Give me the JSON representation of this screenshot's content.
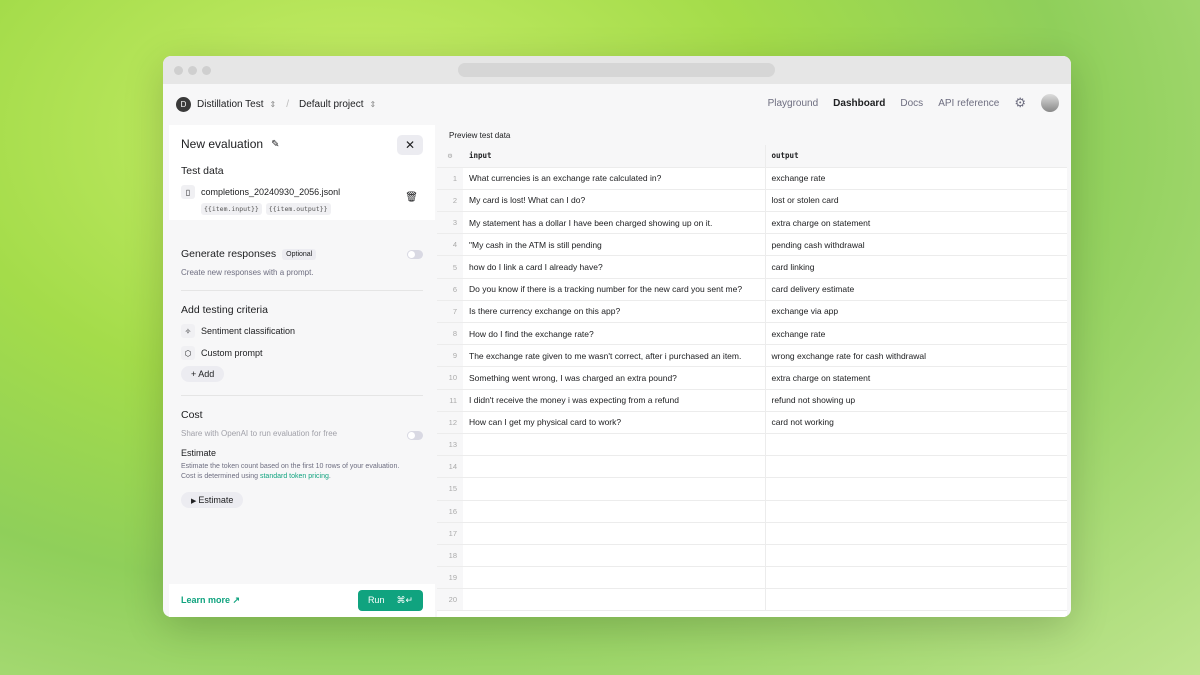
{
  "header": {
    "org_initial": "D",
    "org": "Distillation Test",
    "project": "Default project",
    "nav": [
      "Playground",
      "Dashboard",
      "Docs",
      "API reference"
    ],
    "active_nav": "Dashboard"
  },
  "panel": {
    "title": "New evaluation",
    "test_data": "Test data",
    "file": "completions_20240930_2056.jsonl",
    "tags": [
      "{{item.input}}",
      "{{item.output}}"
    ],
    "generate": "Generate responses",
    "optional": "Optional",
    "generate_sub": "Create new responses with a prompt.",
    "criteria": "Add testing criteria",
    "criteria_items": [
      "Sentiment classification",
      "Custom prompt"
    ],
    "add": "Add",
    "cost": "Cost",
    "share": "Share with OpenAI to run evaluation for free",
    "estimate_h": "Estimate",
    "estimate_desc1": "Estimate the token count based on the first 10 rows of your evaluation.",
    "estimate_desc2": "Cost is determined using ",
    "pricing_link": "standard token pricing",
    "estimate_desc3": ".",
    "estimate_btn": "Estimate",
    "learn": "Learn more ↗",
    "run": "Run",
    "run_kbd": "⌘↵"
  },
  "preview": {
    "title": "Preview test data",
    "columns": [
      "input",
      "output"
    ],
    "rows": [
      [
        "1",
        "What currencies is an exchange rate calculated in?",
        "exchange rate"
      ],
      [
        "2",
        "My card is lost! What can I do?",
        "lost or stolen card"
      ],
      [
        "3",
        "My statement has a dollar I have been charged showing up on it.",
        "extra charge on statement"
      ],
      [
        "4",
        "\"My cash in the ATM is still pending",
        "pending cash withdrawal"
      ],
      [
        "5",
        "how do I link a card I already have?",
        "card linking"
      ],
      [
        "6",
        "Do you know if there is a tracking number for the new card you sent me?",
        "card delivery estimate"
      ],
      [
        "7",
        "Is there currency exchange on this app?",
        "exchange via app"
      ],
      [
        "8",
        "How do I find the exchange rate?",
        "exchange rate"
      ],
      [
        "9",
        "The exchange rate given to me wasn't correct, after i purchased an item.",
        "wrong exchange rate for cash withdrawal"
      ],
      [
        "10",
        "Something went wrong, I was charged an extra pound?",
        "extra charge on statement"
      ],
      [
        "11",
        "I didn't receive the money i was expecting from a refund",
        "refund not showing up"
      ],
      [
        "12",
        "How can I get my physical card to work?",
        "card not working"
      ],
      [
        "13",
        "",
        ""
      ],
      [
        "14",
        "",
        ""
      ],
      [
        "15",
        "",
        ""
      ],
      [
        "16",
        "",
        ""
      ],
      [
        "17",
        "",
        ""
      ],
      [
        "18",
        "",
        ""
      ],
      [
        "19",
        "",
        ""
      ],
      [
        "20",
        "",
        ""
      ]
    ]
  },
  "colors": {
    "accent": "#10a37f"
  }
}
